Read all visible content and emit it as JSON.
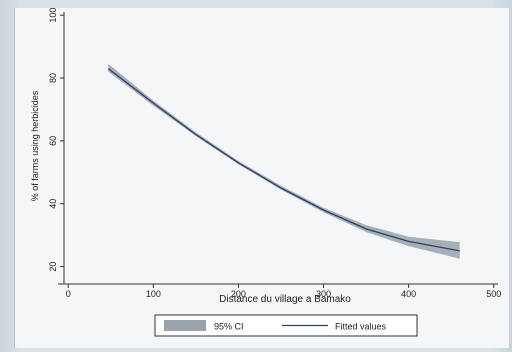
{
  "chart_data": {
    "type": "line",
    "title": "",
    "xlabel": "Distance du village a Bamako",
    "ylabel": "% of farms using herbicides",
    "xlim": [
      -5,
      505
    ],
    "ylim": [
      17,
      101
    ],
    "x_ticks": [
      0,
      100,
      200,
      300,
      400,
      500
    ],
    "y_ticks": [
      20,
      40,
      60,
      80,
      100
    ],
    "grid": false,
    "legend_position": "bottom",
    "series": [
      {
        "name": "Fitted values",
        "type": "line",
        "color": "#2b3f6b",
        "x": [
          47,
          100,
          150,
          200,
          250,
          300,
          350,
          400,
          460
        ],
        "y": [
          83,
          72,
          62,
          53,
          45,
          38,
          32,
          28,
          25
        ]
      },
      {
        "name": "95% CI",
        "type": "band",
        "color": "#9aa3ab",
        "x": [
          47,
          100,
          150,
          200,
          250,
          300,
          350,
          400,
          460
        ],
        "lower": [
          82,
          71.2,
          61.5,
          52.5,
          44.5,
          37.3,
          31,
          26.5,
          22.5
        ],
        "upper": [
          84.5,
          72.8,
          62.7,
          53.6,
          45.7,
          38.7,
          33.2,
          29.5,
          27.8
        ]
      }
    ]
  }
}
